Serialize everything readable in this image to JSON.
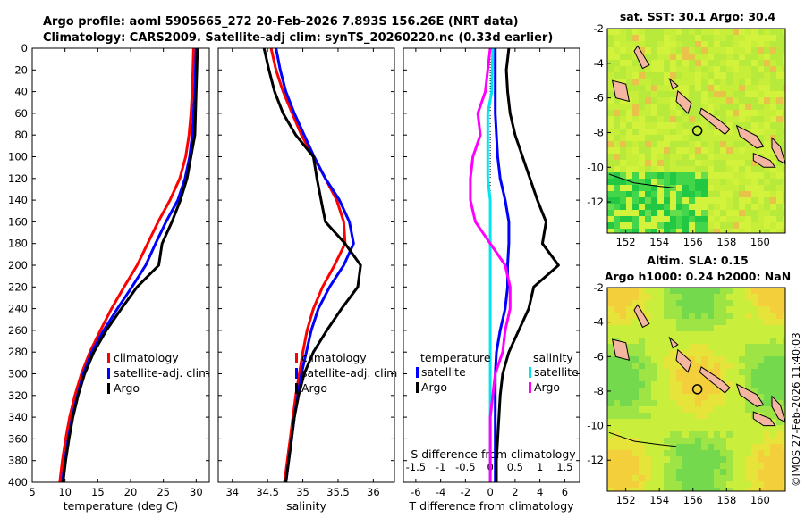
{
  "header": {
    "line1": "Argo profile: aoml 5905665_272 20-Feb-2026 7.893S 156.26E (NRT data)",
    "line2": "Climatology: CARS2009. Satellite-adj clim: synTS_20260220.nc (0.33d earlier)"
  },
  "depth_ticks": [
    "0",
    "20",
    "40",
    "60",
    "80",
    "100",
    "120",
    "140",
    "160",
    "180",
    "200",
    "220",
    "240",
    "260",
    "280",
    "300",
    "320",
    "340",
    "360",
    "380",
    "400"
  ],
  "colors": {
    "climatology": "#ff0000",
    "satellite": "#0000ff",
    "argo": "#000000",
    "sal_sat": "#00e5ee",
    "sal_argo": "#ff00ff"
  },
  "chart_data": [
    {
      "type": "line",
      "name": "temperature",
      "xlabel": "temperature (deg C)",
      "ylim": [
        0,
        400
      ],
      "xlim": [
        5,
        32
      ],
      "xticks": [
        "5",
        "10",
        "15",
        "20",
        "25",
        "30"
      ],
      "legend": [
        "climatology",
        "satellite-adj. clim",
        "Argo"
      ],
      "depth": [
        0,
        20,
        40,
        60,
        80,
        100,
        120,
        140,
        160,
        180,
        200,
        220,
        240,
        260,
        280,
        300,
        320,
        340,
        360,
        380,
        400
      ],
      "series": [
        {
          "name": "climatology",
          "values": [
            29.6,
            29.5,
            29.4,
            29.2,
            28.9,
            28.4,
            27.5,
            26.0,
            24.2,
            22.6,
            21.0,
            19.0,
            17.1,
            15.4,
            13.8,
            12.5,
            11.5,
            10.7,
            10.1,
            9.6,
            9.2
          ]
        },
        {
          "name": "satellite-adj. clim",
          "values": [
            30.0,
            29.9,
            29.8,
            29.6,
            29.4,
            29.0,
            28.3,
            27.2,
            25.4,
            23.8,
            22.3,
            20.2,
            18.0,
            15.9,
            14.1,
            12.8,
            11.9,
            11.1,
            10.5,
            10.0,
            9.6
          ]
        },
        {
          "name": "Argo",
          "values": [
            30.2,
            30.1,
            30.0,
            29.9,
            29.8,
            29.2,
            28.6,
            27.6,
            26.3,
            24.8,
            24.3,
            21.0,
            18.6,
            16.3,
            14.4,
            13.0,
            12.0,
            11.2,
            10.6,
            10.1,
            9.7
          ]
        }
      ]
    },
    {
      "type": "line",
      "name": "salinity",
      "xlabel": "salinity",
      "ylim": [
        0,
        400
      ],
      "xlim": [
        33.8,
        36.3
      ],
      "xticks": [
        "34",
        "34.5",
        "35",
        "35.5",
        "36"
      ],
      "legend": [
        "climatology",
        "satellite-adj. clim",
        "Argo"
      ],
      "depth": [
        0,
        20,
        40,
        60,
        80,
        100,
        120,
        140,
        160,
        180,
        200,
        220,
        240,
        260,
        280,
        300,
        320,
        340,
        360,
        380,
        400
      ],
      "series": [
        {
          "name": "climatology",
          "values": [
            34.55,
            34.62,
            34.72,
            34.85,
            34.98,
            35.15,
            35.32,
            35.48,
            35.58,
            35.6,
            35.45,
            35.28,
            35.15,
            35.06,
            35.0,
            34.95,
            34.9,
            34.86,
            34.82,
            34.78,
            34.74
          ]
        },
        {
          "name": "satellite-adj. clim",
          "values": [
            34.62,
            34.68,
            34.76,
            34.88,
            35.02,
            35.16,
            35.32,
            35.52,
            35.66,
            35.72,
            35.58,
            35.38,
            35.22,
            35.12,
            35.05,
            34.98,
            34.93,
            34.88,
            34.84,
            34.8,
            34.76
          ]
        },
        {
          "name": "Argo",
          "values": [
            34.45,
            34.52,
            34.6,
            34.72,
            34.9,
            35.15,
            35.2,
            35.26,
            35.32,
            35.6,
            35.82,
            35.78,
            35.55,
            35.34,
            35.15,
            35.02,
            34.94,
            34.88,
            34.84,
            34.8,
            34.76
          ]
        }
      ]
    },
    {
      "type": "line",
      "name": "difference",
      "xlabel": "T difference from climatology",
      "xlabel_top": "S difference from climatology",
      "ylim": [
        0,
        400
      ],
      "xlim": [
        -7,
        7.2
      ],
      "xticks": [
        "-6",
        "-4",
        "-2",
        "0",
        "2",
        "4",
        "6"
      ],
      "sticks": [
        "-1.5",
        "-1",
        "-0.5",
        "0",
        "0.5",
        "1",
        "1.5"
      ],
      "legend_t_title": "temperature",
      "legend_s_title": "salinity",
      "legend": [
        "satellite",
        "Argo",
        "satellite",
        "Argo"
      ],
      "depth": [
        0,
        20,
        40,
        60,
        80,
        100,
        120,
        140,
        160,
        180,
        200,
        220,
        240,
        260,
        280,
        300,
        320,
        340,
        360,
        380,
        400
      ],
      "series": [
        {
          "name": "T satellite",
          "values": [
            0.4,
            0.4,
            0.4,
            0.4,
            0.5,
            0.6,
            0.8,
            1.2,
            1.5,
            1.5,
            1.4,
            1.4,
            1.2,
            0.8,
            0.5,
            0.4,
            0.4,
            0.4,
            0.4,
            0.4,
            0.4
          ]
        },
        {
          "name": "T Argo",
          "values": [
            1.5,
            1.3,
            1.4,
            1.6,
            2.0,
            2.6,
            3.2,
            3.8,
            4.5,
            4.2,
            5.5,
            3.5,
            3.1,
            2.3,
            1.5,
            1.0,
            0.8,
            0.7,
            0.6,
            0.5,
            0.5
          ]
        },
        {
          "name": "S satellite",
          "values": [
            0.05,
            0.04,
            0.03,
            -0.05,
            -0.05,
            -0.05,
            -0.05,
            0.0,
            0.0,
            0.0,
            0.0,
            0.0,
            0.0,
            0.0,
            0.0,
            0.0,
            0.0,
            0.0,
            0.0,
            0.0,
            0.0
          ]
        },
        {
          "name": "S Argo",
          "values": [
            0.0,
            -0.05,
            -0.1,
            -0.25,
            -0.2,
            -0.35,
            -0.4,
            -0.4,
            -0.3,
            0.0,
            0.3,
            0.4,
            0.4,
            0.3,
            0.25,
            0.1,
            0.05,
            0.0,
            0.0,
            0.0,
            0.0
          ]
        }
      ]
    }
  ],
  "maps": {
    "top_title": "sat. SST: 30.1 Argo: 30.4",
    "bottom_title1": "Altim. SLA: 0.15",
    "bottom_title2": "Argo h1000: 0.24 h2000: NaN",
    "yticks": [
      "-2",
      "-4",
      "-6",
      "-8",
      "-10",
      "-12"
    ],
    "xticks": [
      "152",
      "154",
      "156",
      "158",
      "160"
    ],
    "credit": "©IMOS 27-Feb-2026 11:40:03"
  }
}
